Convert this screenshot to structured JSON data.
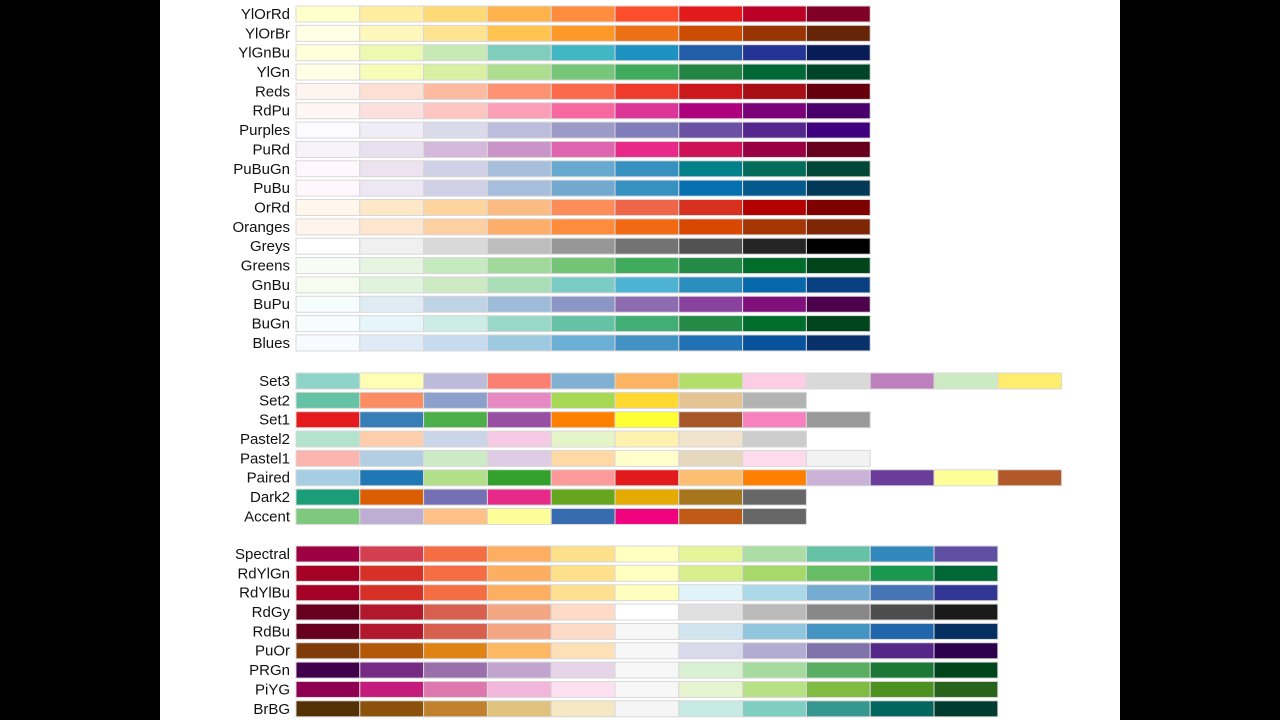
{
  "groups": [
    {
      "palettes": [
        {
          "name": "YlOrRd",
          "colors": [
            "#FFFFCC",
            "#FFEDA0",
            "#FED976",
            "#FEB24C",
            "#FD8D3C",
            "#FC4E2A",
            "#E31A1C",
            "#BD0026",
            "#800026"
          ]
        },
        {
          "name": "YlOrBr",
          "colors": [
            "#FFFFE5",
            "#FFF7BC",
            "#FEE391",
            "#FEC44F",
            "#FE9929",
            "#EC7014",
            "#CC4C02",
            "#993404",
            "#662506"
          ]
        },
        {
          "name": "YlGnBu",
          "colors": [
            "#FFFFD9",
            "#EDF8B1",
            "#C7E9B4",
            "#7FCDBB",
            "#41B6C4",
            "#1D91C0",
            "#225EA8",
            "#253494",
            "#081D58"
          ]
        },
        {
          "name": "YlGn",
          "colors": [
            "#FFFFE5",
            "#F7FCB9",
            "#D9F0A3",
            "#ADDD8E",
            "#78C679",
            "#41AB5D",
            "#238443",
            "#006837",
            "#004529"
          ]
        },
        {
          "name": "Reds",
          "colors": [
            "#FFF5F0",
            "#FEE0D2",
            "#FCBBA1",
            "#FC9272",
            "#FB6A4A",
            "#EF3B2C",
            "#CB181D",
            "#A50F15",
            "#67000D"
          ]
        },
        {
          "name": "RdPu",
          "colors": [
            "#FFF7F3",
            "#FDE0DD",
            "#FCC5C0",
            "#FA9FB5",
            "#F768A1",
            "#DD3497",
            "#AE017E",
            "#7A0177",
            "#49006A"
          ]
        },
        {
          "name": "Purples",
          "colors": [
            "#FCFBFD",
            "#EFEDF5",
            "#DADAEB",
            "#BCBDDC",
            "#9E9AC8",
            "#807DBA",
            "#6A51A3",
            "#54278F",
            "#3F007D"
          ]
        },
        {
          "name": "PuRd",
          "colors": [
            "#F7F4F9",
            "#E7E1EF",
            "#D4B9DA",
            "#C994C7",
            "#DF65B0",
            "#E7298A",
            "#CE1256",
            "#980043",
            "#67001F"
          ]
        },
        {
          "name": "PuBuGn",
          "colors": [
            "#FFF7FB",
            "#ECE2F0",
            "#D0D1E6",
            "#A6BDDB",
            "#67A9CF",
            "#3690C0",
            "#02818A",
            "#016C59",
            "#014636"
          ]
        },
        {
          "name": "PuBu",
          "colors": [
            "#FFF7FB",
            "#ECE7F2",
            "#D0D1E6",
            "#A6BDDB",
            "#74A9CF",
            "#3690C0",
            "#0570B0",
            "#045A8D",
            "#023858"
          ]
        },
        {
          "name": "OrRd",
          "colors": [
            "#FFF7EC",
            "#FEE8C8",
            "#FDD49E",
            "#FDBB84",
            "#FC8D59",
            "#EF6548",
            "#D7301F",
            "#B30000",
            "#7F0000"
          ]
        },
        {
          "name": "Oranges",
          "colors": [
            "#FFF5EB",
            "#FEE6CE",
            "#FDD0A2",
            "#FDAE6B",
            "#FD8D3C",
            "#F16913",
            "#D94801",
            "#A63603",
            "#7F2704"
          ]
        },
        {
          "name": "Greys",
          "colors": [
            "#FFFFFF",
            "#F0F0F0",
            "#D9D9D9",
            "#BDBDBD",
            "#969696",
            "#737373",
            "#525252",
            "#252525",
            "#000000"
          ]
        },
        {
          "name": "Greens",
          "colors": [
            "#F7FCF5",
            "#E5F5E0",
            "#C7E9C0",
            "#A1D99B",
            "#74C476",
            "#41AB5D",
            "#238B45",
            "#006D2C",
            "#00441B"
          ]
        },
        {
          "name": "GnBu",
          "colors": [
            "#F7FCF0",
            "#E0F3DB",
            "#CCEBC5",
            "#A8DDB5",
            "#7BCCC4",
            "#4EB3D3",
            "#2B8CBE",
            "#0868AC",
            "#084081"
          ]
        },
        {
          "name": "BuPu",
          "colors": [
            "#F7FCFD",
            "#E0ECF4",
            "#BFD3E6",
            "#9EBCDA",
            "#8C96C6",
            "#8C6BB1",
            "#88419D",
            "#810F7C",
            "#4D004B"
          ]
        },
        {
          "name": "BuGn",
          "colors": [
            "#F7FCFD",
            "#E5F5F9",
            "#CCECE6",
            "#99D8C9",
            "#66C2A4",
            "#41AE76",
            "#238B45",
            "#006D2C",
            "#00441B"
          ]
        },
        {
          "name": "Blues",
          "colors": [
            "#F7FBFF",
            "#DEEBF7",
            "#C6DBEF",
            "#9ECAE1",
            "#6BAED6",
            "#4292C6",
            "#2171B5",
            "#08519C",
            "#08306B"
          ]
        }
      ]
    },
    {
      "palettes": [
        {
          "name": "Set3",
          "colors": [
            "#8DD3C7",
            "#FFFFB3",
            "#BEBADA",
            "#FB8072",
            "#80B1D3",
            "#FDB462",
            "#B3DE69",
            "#FCCDE5",
            "#D9D9D9",
            "#BC80BD",
            "#CCEBC5",
            "#FFED6F"
          ]
        },
        {
          "name": "Set2",
          "colors": [
            "#66C2A5",
            "#FC8D62",
            "#8DA0CB",
            "#E78AC3",
            "#A6D854",
            "#FFD92F",
            "#E5C494",
            "#B3B3B3"
          ]
        },
        {
          "name": "Set1",
          "colors": [
            "#E41A1C",
            "#377EB8",
            "#4DAF4A",
            "#984EA3",
            "#FF7F00",
            "#FFFF33",
            "#A65628",
            "#F781BF",
            "#999999"
          ]
        },
        {
          "name": "Pastel2",
          "colors": [
            "#B3E2CD",
            "#FDCDAC",
            "#CBD5E8",
            "#F4CAE4",
            "#E6F5C9",
            "#FFF2AE",
            "#F1E2CC",
            "#CCCCCC"
          ]
        },
        {
          "name": "Pastel1",
          "colors": [
            "#FBB4AE",
            "#B3CDE3",
            "#CCEBC5",
            "#DECBE4",
            "#FED9A6",
            "#FFFFCC",
            "#E5D8BD",
            "#FDDAEC",
            "#F2F2F2"
          ]
        },
        {
          "name": "Paired",
          "colors": [
            "#A6CEE3",
            "#1F78B4",
            "#B2DF8A",
            "#33A02C",
            "#FB9A99",
            "#E31A1C",
            "#FDBF6F",
            "#FF7F00",
            "#CAB2D6",
            "#6A3D9A",
            "#FFFF99",
            "#B15928"
          ]
        },
        {
          "name": "Dark2",
          "colors": [
            "#1B9E77",
            "#D95F02",
            "#7570B3",
            "#E7298A",
            "#66A61E",
            "#E6AB02",
            "#A6761D",
            "#666666"
          ]
        },
        {
          "name": "Accent",
          "colors": [
            "#7FC97F",
            "#BEAED4",
            "#FDC086",
            "#FFFF99",
            "#386CB0",
            "#F0027F",
            "#BF5B17",
            "#666666"
          ]
        }
      ]
    },
    {
      "palettes": [
        {
          "name": "Spectral",
          "colors": [
            "#9E0142",
            "#D53E4F",
            "#F46D43",
            "#FDAE61",
            "#FEE08B",
            "#FFFFBF",
            "#E6F598",
            "#ABDDA4",
            "#66C2A5",
            "#3288BD",
            "#5E4FA2"
          ]
        },
        {
          "name": "RdYlGn",
          "colors": [
            "#A50026",
            "#D73027",
            "#F46D43",
            "#FDAE61",
            "#FEE08B",
            "#FFFFBF",
            "#D9EF8B",
            "#A6D96A",
            "#66BD63",
            "#1A9850",
            "#006837"
          ]
        },
        {
          "name": "RdYlBu",
          "colors": [
            "#A50026",
            "#D73027",
            "#F46D43",
            "#FDAE61",
            "#FEE090",
            "#FFFFBF",
            "#E0F3F8",
            "#ABD9E9",
            "#74ADD1",
            "#4575B4",
            "#313695"
          ]
        },
        {
          "name": "RdGy",
          "colors": [
            "#67001F",
            "#B2182B",
            "#D6604D",
            "#F4A582",
            "#FDDBC7",
            "#FFFFFF",
            "#E0E0E0",
            "#BABABA",
            "#878787",
            "#4D4D4D",
            "#1A1A1A"
          ]
        },
        {
          "name": "RdBu",
          "colors": [
            "#67001F",
            "#B2182B",
            "#D6604D",
            "#F4A582",
            "#FDDBC7",
            "#F7F7F7",
            "#D1E5F0",
            "#92C5DE",
            "#4393C3",
            "#2166AC",
            "#053061"
          ]
        },
        {
          "name": "PuOr",
          "colors": [
            "#7F3B08",
            "#B35806",
            "#E08214",
            "#FDB863",
            "#FEE0B6",
            "#F7F7F7",
            "#D8DAEB",
            "#B2ABD2",
            "#8073AC",
            "#542788",
            "#2D004B"
          ]
        },
        {
          "name": "PRGn",
          "colors": [
            "#40004B",
            "#762A83",
            "#9970AB",
            "#C2A5CF",
            "#E7D4E8",
            "#F7F7F7",
            "#D9F0D3",
            "#A6DBA0",
            "#5AAE61",
            "#1B7837",
            "#00441B"
          ]
        },
        {
          "name": "PiYG",
          "colors": [
            "#8E0152",
            "#C51B7D",
            "#DE77AE",
            "#F1B6DA",
            "#FDE0EF",
            "#F7F7F7",
            "#E6F5D0",
            "#B8E186",
            "#7FBC41",
            "#4D9221",
            "#276419"
          ]
        },
        {
          "name": "BrBG",
          "colors": [
            "#543005",
            "#8C510A",
            "#BF812D",
            "#DFC27D",
            "#F6E8C3",
            "#F5F5F5",
            "#C7EAE5",
            "#80CDC1",
            "#35978F",
            "#01665E",
            "#003C30"
          ]
        }
      ]
    }
  ]
}
